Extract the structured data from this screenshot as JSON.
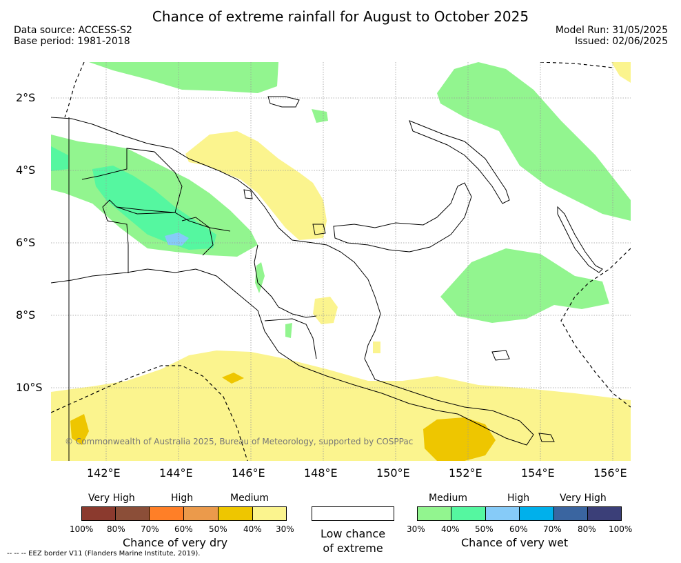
{
  "title": "Chance of extreme rainfall for August to October 2025",
  "data_source": "Data source: ACCESS-S2",
  "base_period": "Base period: 1981-2018",
  "model_run": "Model Run: 31/05/2025",
  "issued": "Issued: 02/06/2025",
  "copyright": "© Commonwealth of Australia 2025, Bureau of Meteorology, supported by COSPPac",
  "eez_note": "--  --  -- EEZ border V11 (Flanders Marine Institute, 2019).",
  "axes": {
    "lat_labels": [
      "2°S",
      "4°S",
      "6°S",
      "8°S",
      "10°S"
    ],
    "lon_labels": [
      "142°E",
      "144°E",
      "146°E",
      "148°E",
      "150°E",
      "152°E",
      "154°E",
      "156°E"
    ]
  },
  "legend": {
    "dry": {
      "levels": [
        "Very High",
        "High",
        "Medium"
      ],
      "ticks": [
        "100%",
        "80%",
        "70%",
        "60%",
        "50%",
        "40%",
        "30%"
      ],
      "colors": [
        "#8b3a2e",
        "#8b4e38",
        "#ff7f27",
        "#eb9a4b",
        "#eec600",
        "#fbf48e"
      ],
      "caption": "Chance of very dry"
    },
    "neutral": {
      "caption_line1": "Low chance",
      "caption_line2": "of extreme",
      "color": "#ffffff"
    },
    "wet": {
      "levels": [
        "Medium",
        "High",
        "Very High"
      ],
      "ticks": [
        "30%",
        "40%",
        "50%",
        "60%",
        "70%",
        "80%",
        "100%"
      ],
      "colors": [
        "#92f58f",
        "#55f7a0",
        "#86cbf8",
        "#00b0eb",
        "#3a65a0",
        "#3b3f78"
      ],
      "caption": "Chance of very wet"
    }
  }
}
